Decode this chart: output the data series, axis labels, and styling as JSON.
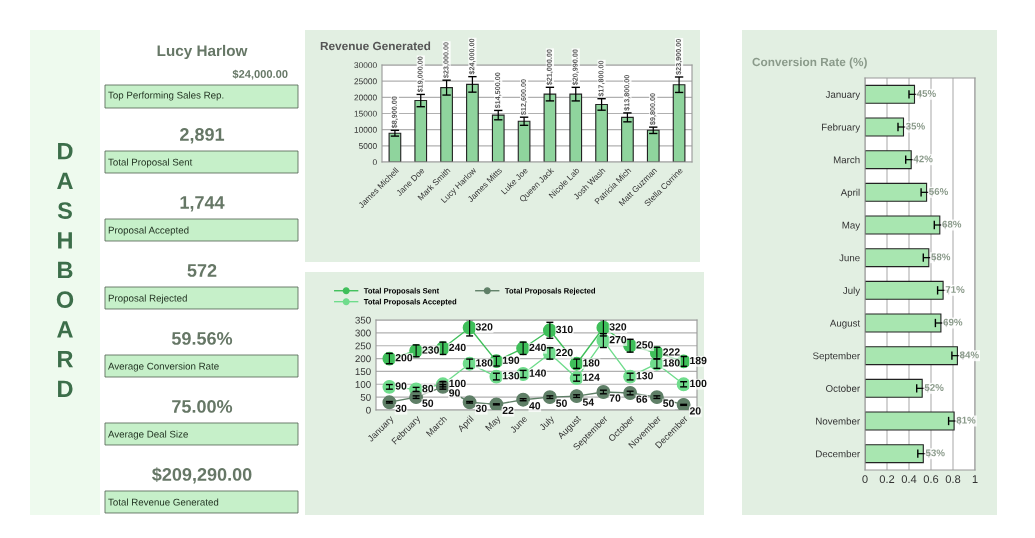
{
  "chart_data": [
    {
      "type": "other",
      "title": "DASHBOARD",
      "annotations": [
        "Lucy Harlow",
        "$24,000.00",
        "Top Performing Sales Rep.",
        "2,891",
        "Total Proposal Sent",
        "1,744",
        "Proposal Accepted",
        "572",
        "Proposal Rejected",
        "59.56%",
        "Average Conversion Rate",
        "75.00%",
        "Average Deal Size",
        "$209,290.00",
        "Total Revenue Generated"
      ]
    },
    {
      "type": "bar",
      "title": "Revenue Generated",
      "categories": [
        "James Michell",
        "Jane Doe",
        "Mark Smith",
        "Lucy Harlow",
        "James Mitts",
        "Luke Joe",
        "Queen Jack",
        "Nicole Lab",
        "Josh Wash",
        "Patricia Mich",
        "Matt Guzman",
        "Stella Corrine"
      ],
      "values": [
        8900,
        19000,
        23000,
        24000,
        14500,
        12600,
        21000,
        20990,
        17800,
        13800,
        9800,
        23900
      ],
      "errors": [
        890,
        1900,
        2300,
        2400,
        1450,
        1260,
        2100,
        2099,
        1780,
        1380,
        980,
        2390
      ],
      "value_labels": [
        "$8,900.00",
        "$19,000.00",
        "$23,000.00",
        "$24,000.00",
        "$14,500.00",
        "$12,600.00",
        "$21,000.00",
        "$20,990.00",
        "$17,800.00",
        "$13,800.00",
        "$9,800.00",
        "$23,900.00"
      ],
      "color": "#8fd49d",
      "ylim": [
        0,
        30000
      ],
      "yticks": [
        0,
        5000,
        10000,
        15000,
        20000,
        25000,
        30000
      ],
      "grid": "y"
    },
    {
      "type": "line",
      "categories": [
        "January",
        "February",
        "March",
        "April",
        "May",
        "June",
        "July",
        "August",
        "September",
        "October",
        "November",
        "December"
      ],
      "series": [
        {
          "name": "Total Proposals Sent",
          "color": "#3fbf5a",
          "values": [
            200,
            230,
            240,
            320,
            190,
            240,
            310,
            180,
            320,
            250,
            222,
            189
          ],
          "errors": [
            20,
            23,
            24,
            32,
            19,
            24,
            31,
            18,
            32,
            25,
            22,
            19
          ]
        },
        {
          "name": "Total Proposals Accepted",
          "color": "#6fdc8c",
          "values": [
            90,
            80,
            100,
            180,
            130,
            140,
            220,
            124,
            270,
            130,
            180,
            100
          ],
          "errors": [
            9,
            8,
            10,
            18,
            13,
            14,
            22,
            12,
            27,
            13,
            18,
            10
          ]
        },
        {
          "name": "Total Proposals Rejected",
          "color": "#5f7f67",
          "values": [
            30,
            50,
            90,
            30,
            22,
            40,
            50,
            54,
            70,
            66,
            50,
            20
          ],
          "errors": [
            3,
            5,
            9,
            3,
            2,
            4,
            5,
            5,
            7,
            7,
            5,
            2
          ]
        }
      ],
      "ylim": [
        0,
        350
      ],
      "yticks": [
        0,
        50,
        100,
        150,
        200,
        250,
        300,
        350
      ],
      "grid": "y",
      "legend": "top left",
      "marker": "circle",
      "data_labels": true
    },
    {
      "type": "bar",
      "orientation": "horizontal",
      "title": "Conversion Rate (%)",
      "categories": [
        "January",
        "February",
        "March",
        "April",
        "May",
        "June",
        "July",
        "August",
        "September",
        "October",
        "November",
        "December"
      ],
      "values": [
        0.45,
        0.35,
        0.42,
        0.56,
        0.68,
        0.58,
        0.71,
        0.69,
        0.84,
        0.52,
        0.81,
        0.53
      ],
      "errors": [
        0.05,
        0.05,
        0.05,
        0.05,
        0.05,
        0.05,
        0.05,
        0.05,
        0.05,
        0.05,
        0.05,
        0.05
      ],
      "value_labels": [
        "45%",
        "35%",
        "42%",
        "56%",
        "68%",
        "58%",
        "71%",
        "69%",
        "84%",
        "52%",
        "81%",
        "53%"
      ],
      "color": "#a8e6b0",
      "xlim": [
        0,
        1
      ],
      "xticks": [
        0,
        {
          "value": 0.2,
          "label": "0.2"
        },
        {
          "value": 0.4,
          "label": "0.4"
        },
        {
          "value": 0.6,
          "label": "0.6"
        },
        {
          "value": 0.8,
          "label": "0.8"
        },
        1
      ],
      "grid": "x"
    }
  ]
}
